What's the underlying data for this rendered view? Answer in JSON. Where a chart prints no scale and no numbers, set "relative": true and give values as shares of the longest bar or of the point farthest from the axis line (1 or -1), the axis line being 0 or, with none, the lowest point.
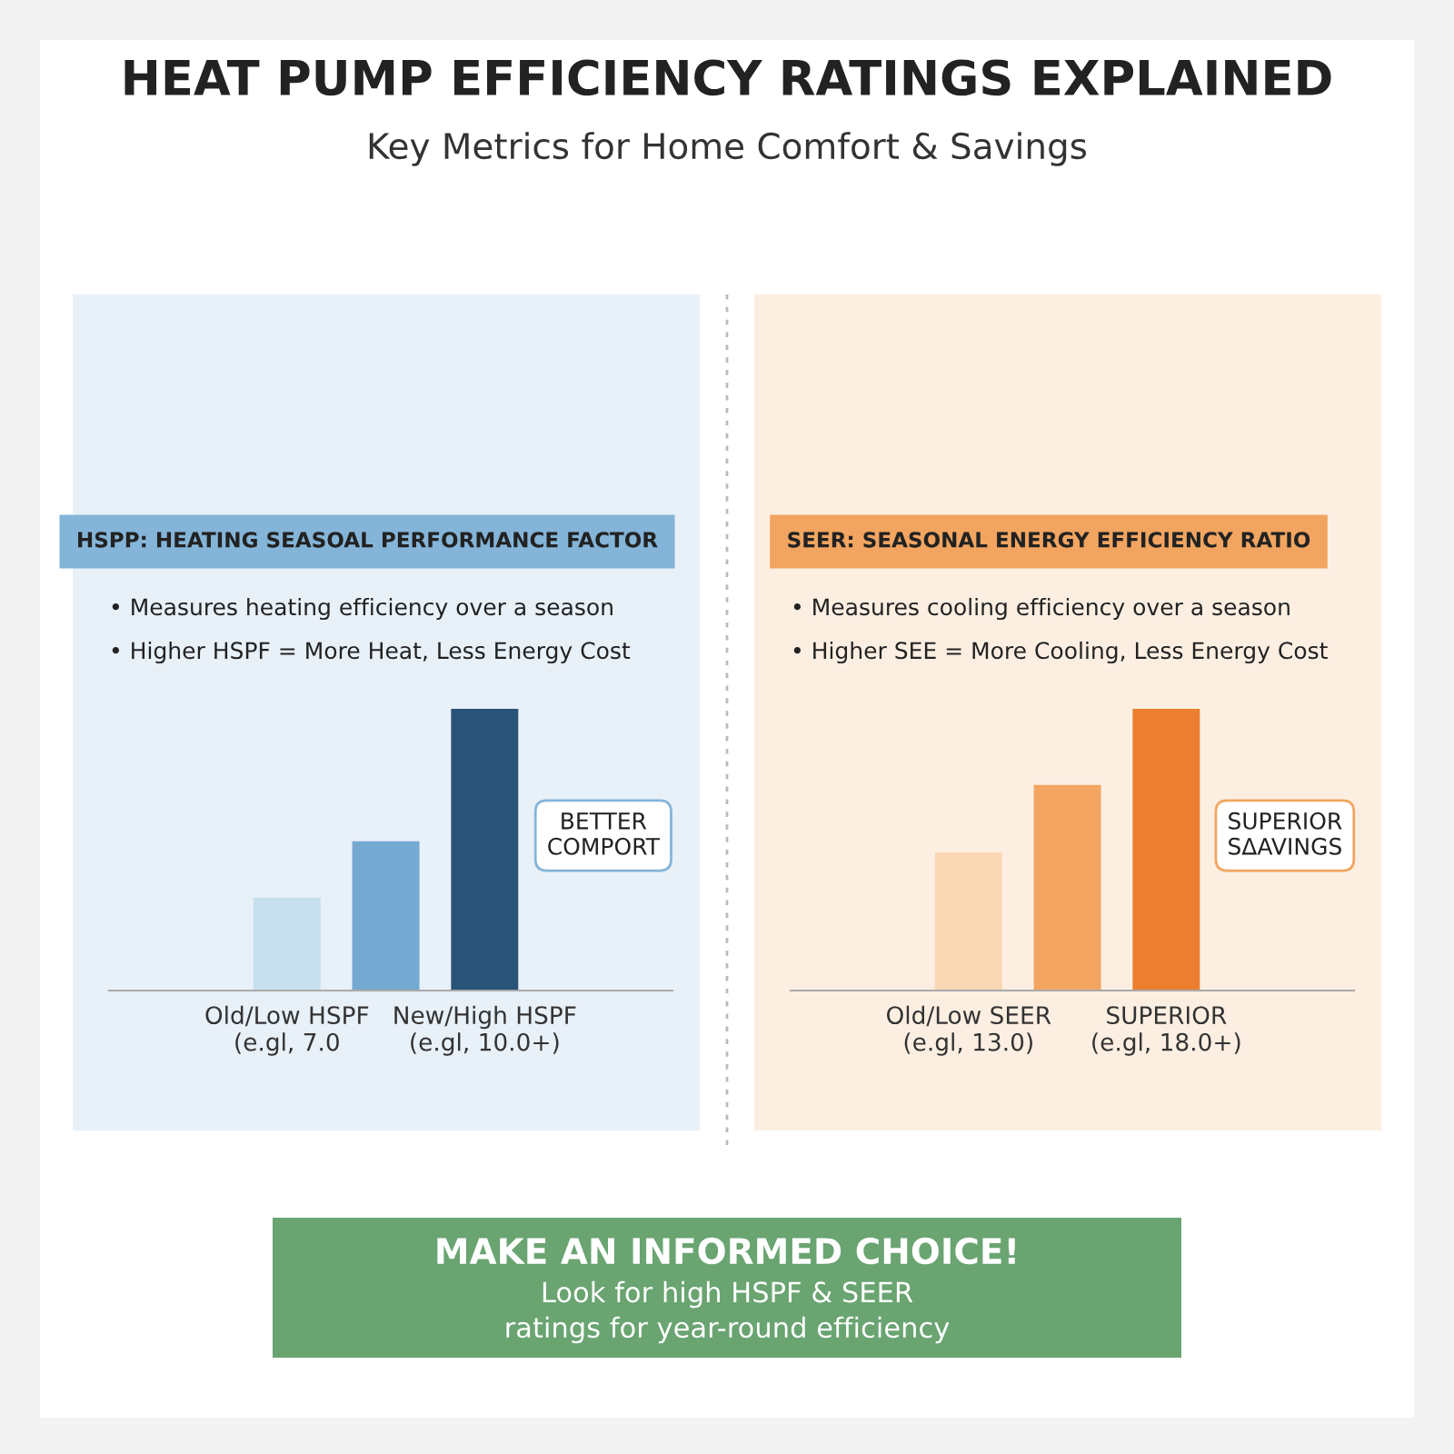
{
  "chart_data": [
    {
      "type": "other",
      "title": "HEAT PUMP EFFICIENCY RATINGS EXPLAINED",
      "subtitle": "Key Metrics for Home Comfort & Savings"
    },
    {
      "type": "bar",
      "relative": true,
      "title": "HSPP: HEATING SEASOAL PERFORMANCE FACTOR",
      "categories": [
        "Old/Low HSPF\n(e.gl, 7.0",
        null,
        "New/High HSPF\n(e.gl, 10.0+)"
      ],
      "values": [
        0.33,
        0.53,
        1
      ],
      "colors": [
        "#c6e0ee",
        "#74a9d2",
        "#295377"
      ],
      "annotations": [
        "• Measures heating efficiency over a season",
        "• Higher HSPF = More Heat, Less Energy Cost",
        "BETTER\nCOMPORT"
      ]
    },
    {
      "type": "bar",
      "relative": true,
      "title": "SEER: SEASONAL ENERGY EFFICIENCY RATIO",
      "categories": [
        "Old/Low SEER\n(e.gl, 13.0)",
        null,
        "SUPERIOR\n(e.gl, 18.0+)"
      ],
      "values": [
        0.49,
        0.73,
        1
      ],
      "colors": [
        "#fad7b5",
        "#f3a561",
        "#eb7f2f"
      ],
      "annotations": [
        "• Measures cooling efficiency over a season",
        "• Higher SEE = More Cooling, Less Energy Cost",
        "SUPERIOR\nSΔAVINGS"
      ]
    },
    {
      "type": "other",
      "title": "MAKE AN INFORMED CHOICE!",
      "annotations": [
        "Look for high HSPF & SEER\nratings for year-round efficiency"
      ]
    }
  ]
}
